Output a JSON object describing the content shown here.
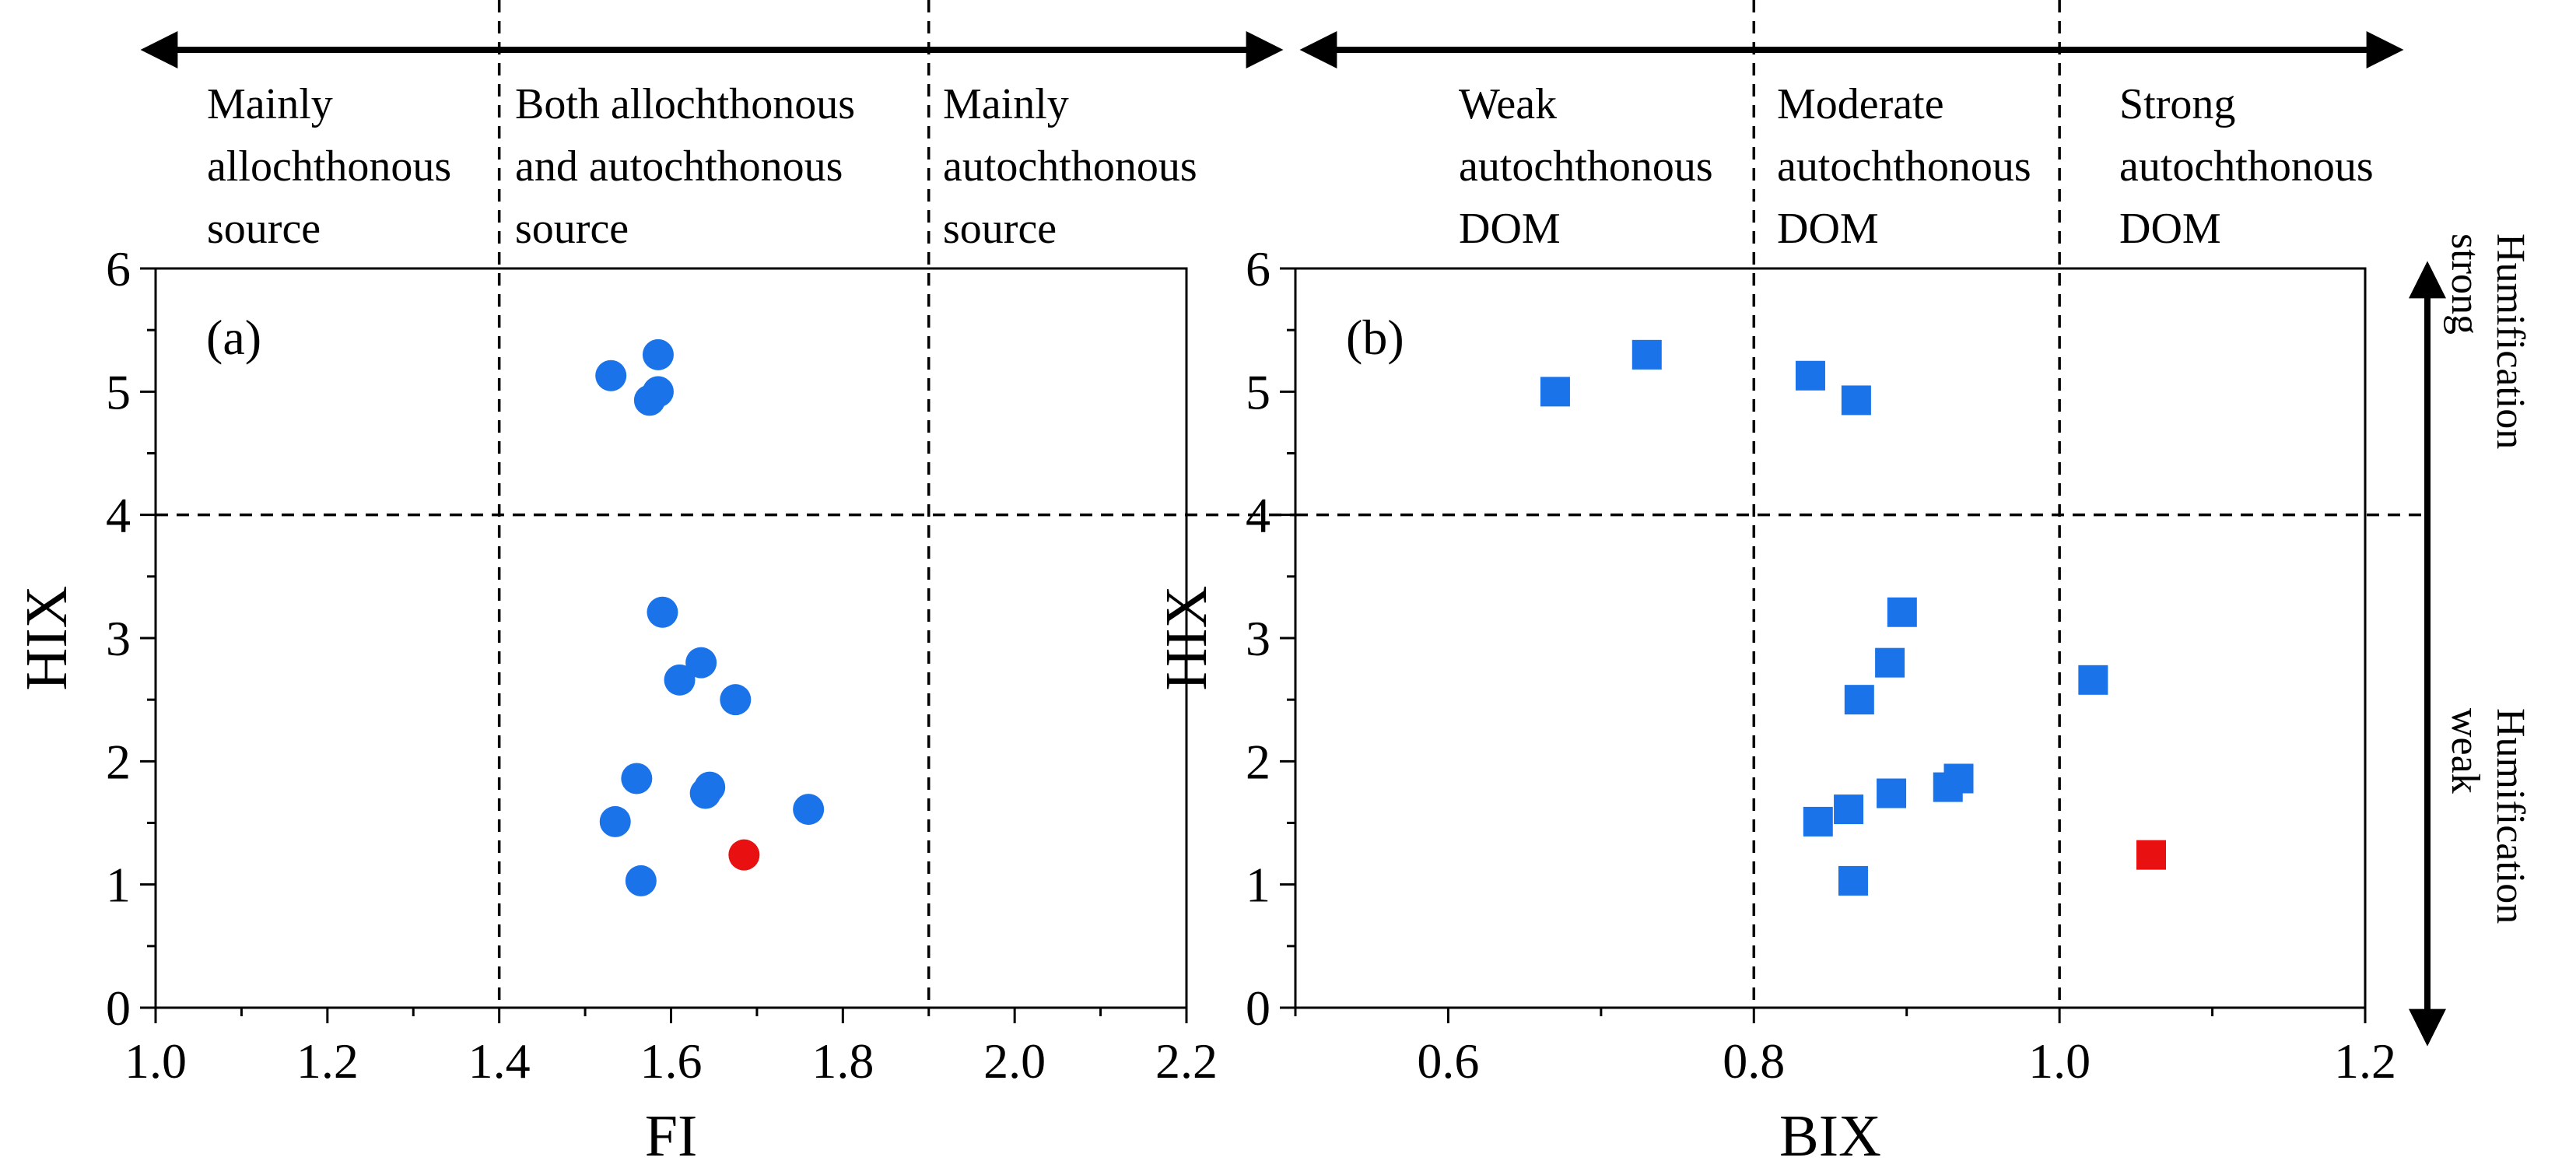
{
  "colors": {
    "base": "#1a73e8",
    "highlight": "#e81010",
    "ink": "#000000"
  },
  "top_arrows": {
    "left": "fi-range-arrow",
    "right": "bix-range-arrow"
  },
  "fi_zone_labels": [
    [
      "Mainly",
      "allochthonous",
      "source"
    ],
    [
      "Both allochthonous",
      "and autochthonous",
      "source"
    ],
    [
      "Mainly",
      "autochthonous",
      "source"
    ]
  ],
  "bix_zone_labels": [
    [
      "Weak",
      "autochthonous",
      "DOM"
    ],
    [
      "Moderate",
      "autochthonous",
      "DOM"
    ],
    [
      "Strong",
      "autochthonous",
      "DOM"
    ]
  ],
  "humification": {
    "strong": [
      "Humification",
      "strong"
    ],
    "weak": [
      "Humification",
      "weak"
    ]
  },
  "chart_data": [
    {
      "type": "scatter",
      "panel": "(a)",
      "marker": "circle",
      "xlabel": "FI",
      "ylabel": "HIX",
      "xlim": [
        1.0,
        2.2
      ],
      "ylim": [
        0,
        6
      ],
      "xticks": [
        1.0,
        1.2,
        1.4,
        1.6,
        1.8,
        2.0,
        2.2
      ],
      "xtick_labels": [
        "1.0",
        "1.2",
        "1.4",
        "1.6",
        "1.8",
        "2.0",
        "2.2"
      ],
      "yticks": [
        0,
        1,
        2,
        3,
        4,
        5,
        6
      ],
      "ytick_labels": [
        "0",
        "1",
        "2",
        "3",
        "4",
        "5",
        "6"
      ],
      "vlines": [
        1.4,
        1.9
      ],
      "hline": 4,
      "points": [
        {
          "x": 1.53,
          "y": 5.13
        },
        {
          "x": 1.585,
          "y": 5.3
        },
        {
          "x": 1.585,
          "y": 5.0
        },
        {
          "x": 1.575,
          "y": 4.93
        },
        {
          "x": 1.59,
          "y": 3.21
        },
        {
          "x": 1.635,
          "y": 2.8
        },
        {
          "x": 1.61,
          "y": 2.66
        },
        {
          "x": 1.675,
          "y": 2.5
        },
        {
          "x": 1.56,
          "y": 1.86
        },
        {
          "x": 1.645,
          "y": 1.79
        },
        {
          "x": 1.64,
          "y": 1.74
        },
        {
          "x": 1.76,
          "y": 1.61
        },
        {
          "x": 1.535,
          "y": 1.51
        },
        {
          "x": 1.565,
          "y": 1.03
        },
        {
          "x": 1.685,
          "y": 1.24,
          "highlight": true
        }
      ]
    },
    {
      "type": "scatter",
      "panel": "(b)",
      "marker": "square",
      "xlabel": "BIX",
      "ylabel": "HIX",
      "xlim": [
        0.5,
        1.2
      ],
      "ylim": [
        0,
        6
      ],
      "xticks": [
        0.6,
        0.8,
        1.0,
        1.2
      ],
      "xtick_labels": [
        "0.6",
        "0.8",
        "1.0",
        "1.2"
      ],
      "minor_xticks": [
        0.5,
        0.7,
        0.9,
        1.1
      ],
      "yticks": [
        0,
        1,
        2,
        3,
        4,
        5,
        6
      ],
      "ytick_labels": [
        "0",
        "1",
        "2",
        "3",
        "4",
        "5",
        "6"
      ],
      "vlines": [
        0.8,
        1.0
      ],
      "hline": 4,
      "points": [
        {
          "x": 0.67,
          "y": 5.0
        },
        {
          "x": 0.73,
          "y": 5.3
        },
        {
          "x": 0.837,
          "y": 5.13
        },
        {
          "x": 0.867,
          "y": 4.93
        },
        {
          "x": 0.897,
          "y": 3.21
        },
        {
          "x": 0.889,
          "y": 2.8
        },
        {
          "x": 0.869,
          "y": 2.5
        },
        {
          "x": 1.022,
          "y": 2.66
        },
        {
          "x": 0.934,
          "y": 1.86
        },
        {
          "x": 0.927,
          "y": 1.79
        },
        {
          "x": 0.89,
          "y": 1.74
        },
        {
          "x": 0.862,
          "y": 1.61
        },
        {
          "x": 0.842,
          "y": 1.51
        },
        {
          "x": 0.865,
          "y": 1.03
        },
        {
          "x": 1.06,
          "y": 1.24,
          "highlight": true
        }
      ]
    }
  ]
}
